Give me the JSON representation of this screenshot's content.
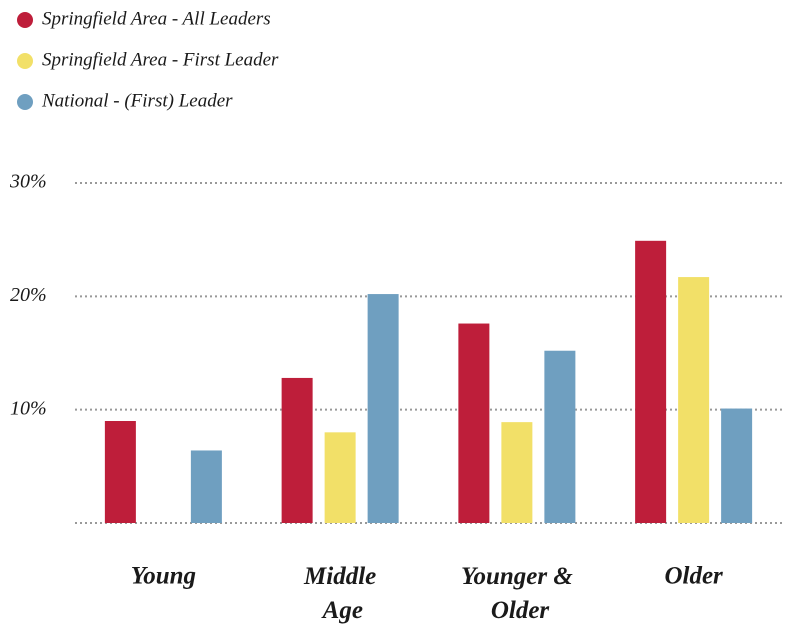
{
  "chart_data": {
    "type": "bar",
    "categories": [
      "Young",
      "Middle Age",
      "Younger & Older",
      "Older"
    ],
    "series": [
      {
        "name": "Springfield Area - All Leaders",
        "color": "#be1e3a",
        "values": [
          9.0,
          12.8,
          17.6,
          24.9
        ]
      },
      {
        "name": "Springfield Area - First Leader",
        "color": "#f2e068",
        "values": [
          null,
          8.0,
          8.9,
          21.7
        ]
      },
      {
        "name": "National - (First) Leader",
        "color": "#6f9fc0",
        "values": [
          6.4,
          20.2,
          15.2,
          10.1
        ]
      }
    ],
    "ylim": [
      0,
      30
    ],
    "yticks": [
      {
        "value": 10,
        "label": "10%"
      },
      {
        "value": 20,
        "label": "20%"
      },
      {
        "value": 30,
        "label": "30%"
      }
    ],
    "grid": true
  }
}
